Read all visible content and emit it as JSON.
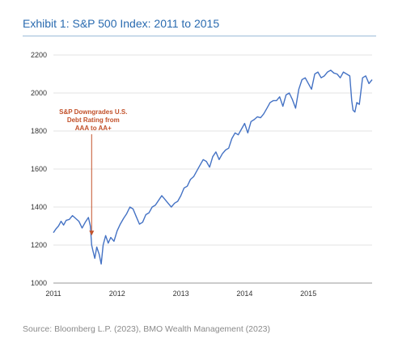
{
  "title": "Exhibit 1: S&P 500 Index: 2011 to 2015",
  "source": "Source: Bloomberg L.P. (2023), BMO Wealth Management (2023)",
  "colors": {
    "line": "#4472c4",
    "annotation": "#c2512a",
    "title": "#2a6bb0"
  },
  "chart_data": {
    "type": "line",
    "title": "",
    "xlabel": "",
    "ylabel": "",
    "xlim": [
      2011.0,
      2016.0
    ],
    "ylim": [
      1000,
      2200
    ],
    "x_ticks": [
      2011,
      2012,
      2013,
      2014,
      2015
    ],
    "y_ticks": [
      1000,
      1200,
      1400,
      1600,
      1800,
      2000,
      2200
    ],
    "grid": "horizontal",
    "series": [
      {
        "name": "",
        "x": [
          2011.0,
          2011.04,
          2011.08,
          2011.12,
          2011.16,
          2011.2,
          2011.25,
          2011.3,
          2011.35,
          2011.4,
          2011.45,
          2011.5,
          2011.55,
          2011.58,
          2011.6,
          2011.62,
          2011.65,
          2011.68,
          2011.72,
          2011.75,
          2011.78,
          2011.82,
          2011.86,
          2011.9,
          2011.95,
          2012.0,
          2012.05,
          2012.1,
          2012.15,
          2012.2,
          2012.25,
          2012.3,
          2012.35,
          2012.4,
          2012.45,
          2012.5,
          2012.55,
          2012.6,
          2012.65,
          2012.7,
          2012.75,
          2012.8,
          2012.85,
          2012.9,
          2012.95,
          2013.0,
          2013.05,
          2013.1,
          2013.15,
          2013.2,
          2013.25,
          2013.3,
          2013.35,
          2013.4,
          2013.45,
          2013.5,
          2013.55,
          2013.6,
          2013.65,
          2013.7,
          2013.75,
          2013.8,
          2013.85,
          2013.9,
          2013.95,
          2014.0,
          2014.05,
          2014.1,
          2014.15,
          2014.2,
          2014.25,
          2014.3,
          2014.35,
          2014.4,
          2014.45,
          2014.5,
          2014.55,
          2014.6,
          2014.65,
          2014.7,
          2014.75,
          2014.8,
          2014.85,
          2014.9,
          2014.95,
          2015.0,
          2015.05,
          2015.1,
          2015.15,
          2015.2,
          2015.25,
          2015.3,
          2015.35,
          2015.4,
          2015.45,
          2015.5,
          2015.55,
          2015.6,
          2015.65,
          2015.68,
          2015.7,
          2015.73,
          2015.76,
          2015.8,
          2015.85,
          2015.9,
          2015.95,
          2016.0
        ],
        "values": [
          1265,
          1285,
          1300,
          1325,
          1305,
          1330,
          1335,
          1355,
          1340,
          1325,
          1290,
          1320,
          1345,
          1300,
          1200,
          1170,
          1130,
          1190,
          1150,
          1100,
          1200,
          1250,
          1210,
          1240,
          1220,
          1275,
          1310,
          1340,
          1365,
          1400,
          1390,
          1350,
          1310,
          1320,
          1360,
          1370,
          1400,
          1410,
          1435,
          1460,
          1440,
          1420,
          1400,
          1420,
          1430,
          1460,
          1500,
          1510,
          1545,
          1560,
          1590,
          1620,
          1650,
          1640,
          1610,
          1665,
          1690,
          1650,
          1680,
          1700,
          1710,
          1760,
          1790,
          1780,
          1810,
          1840,
          1790,
          1850,
          1860,
          1875,
          1870,
          1890,
          1920,
          1950,
          1960,
          1960,
          1980,
          1930,
          1990,
          2000,
          1965,
          1920,
          2020,
          2070,
          2080,
          2050,
          2020,
          2100,
          2110,
          2080,
          2090,
          2110,
          2120,
          2105,
          2100,
          2080,
          2110,
          2100,
          2090,
          1960,
          1910,
          1900,
          1950,
          1940,
          2080,
          2090,
          2050,
          2070
        ]
      }
    ],
    "annotations": [
      {
        "lines": [
          "S&P Downgrades U.S.",
          "Debt Rating from",
          "AAA to AA+"
        ],
        "x": 2011.6,
        "y": 1250
      }
    ]
  }
}
